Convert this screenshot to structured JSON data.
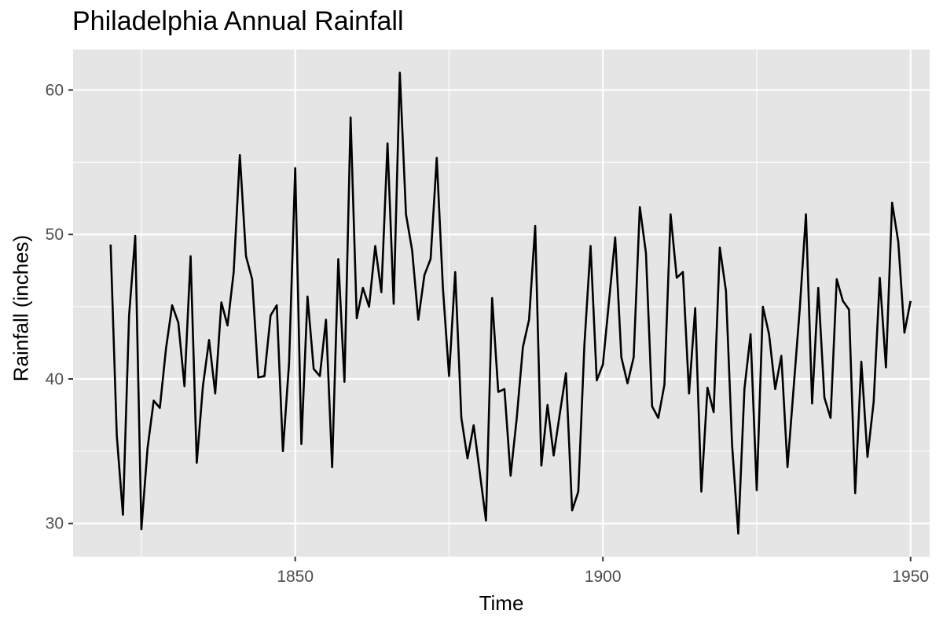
{
  "chart_data": {
    "type": "line",
    "title": "Philadelphia Annual Rainfall",
    "xlabel": "Time",
    "ylabel": "Rainfall (inches)",
    "xlim": [
      1813.9,
      1953.1
    ],
    "ylim": [
      27.7,
      62.8
    ],
    "x_ticks": [
      1850,
      1900,
      1950
    ],
    "y_ticks": [
      30,
      40,
      50,
      60
    ],
    "grid": true,
    "background": "#e5e5e5",
    "grid_color": "#ffffff",
    "line_color": "#000000",
    "series": [
      {
        "x": [
          1820,
          1821,
          1822,
          1823,
          1824,
          1825,
          1826,
          1827,
          1828,
          1829,
          1830,
          1831,
          1832,
          1833,
          1834,
          1835,
          1836,
          1837,
          1838,
          1839,
          1840,
          1841,
          1842,
          1843,
          1844,
          1845,
          1846,
          1847,
          1848,
          1849,
          1850,
          1851,
          1852,
          1853,
          1854,
          1855,
          1856,
          1857,
          1858,
          1859,
          1860,
          1861,
          1862,
          1863,
          1864,
          1865,
          1866,
          1867,
          1868,
          1869,
          1870,
          1871,
          1872,
          1873,
          1874,
          1875,
          1876,
          1877,
          1878,
          1879,
          1880,
          1881,
          1882,
          1883,
          1884,
          1885,
          1886,
          1887,
          1888,
          1889,
          1890,
          1891,
          1892,
          1893,
          1894,
          1895,
          1896,
          1897,
          1898,
          1899,
          1900,
          1901,
          1902,
          1903,
          1904,
          1905,
          1906,
          1907,
          1908,
          1909,
          1910,
          1911,
          1912,
          1913,
          1914,
          1915,
          1916,
          1917,
          1918,
          1919,
          1920,
          1921,
          1922,
          1923,
          1924,
          1925,
          1926,
          1927,
          1928,
          1929,
          1930,
          1931,
          1932,
          1933,
          1934,
          1935,
          1936,
          1937,
          1938,
          1939,
          1940,
          1941,
          1942,
          1943,
          1944,
          1945,
          1946,
          1947,
          1948,
          1949,
          1950
        ],
        "values": [
          49.3,
          36.1,
          30.6,
          44.4,
          49.9,
          29.6,
          35.2,
          38.5,
          38.0,
          42.1,
          45.1,
          43.9,
          39.5,
          48.5,
          34.2,
          39.5,
          42.7,
          39.0,
          45.3,
          43.7,
          47.4,
          55.5,
          48.5,
          46.9,
          40.1,
          40.2,
          44.4,
          45.1,
          35.0,
          41.1,
          54.6,
          35.5,
          45.7,
          40.7,
          40.2,
          44.1,
          33.9,
          48.3,
          39.8,
          58.1,
          44.2,
          46.3,
          45.0,
          49.2,
          46.0,
          56.3,
          45.2,
          61.2,
          51.4,
          48.9,
          44.1,
          47.2,
          48.3,
          55.3,
          46.3,
          40.2,
          47.4,
          37.3,
          34.5,
          36.8,
          33.5,
          30.2,
          45.6,
          39.1,
          39.3,
          33.3,
          37.3,
          42.2,
          44.1,
          50.6,
          34.0,
          38.2,
          34.7,
          37.6,
          40.4,
          30.9,
          32.2,
          42.4,
          49.2,
          39.9,
          41.0,
          45.4,
          49.8,
          41.5,
          39.7,
          41.5,
          51.9,
          48.7,
          38.1,
          37.3,
          39.6,
          51.4,
          47.0,
          47.4,
          39.0,
          44.9,
          32.2,
          39.4,
          37.7,
          49.1,
          46.1,
          35.4,
          29.3,
          39.3,
          43.1,
          32.3,
          45.0,
          43.1,
          39.3,
          41.6,
          33.9,
          39.4,
          44.9,
          51.4,
          38.3,
          46.3,
          38.7,
          37.3,
          46.9,
          45.4,
          44.8,
          32.1,
          41.2,
          34.6,
          38.4,
          47.0,
          40.8,
          52.2,
          49.5,
          43.2,
          45.4
        ]
      }
    ]
  }
}
